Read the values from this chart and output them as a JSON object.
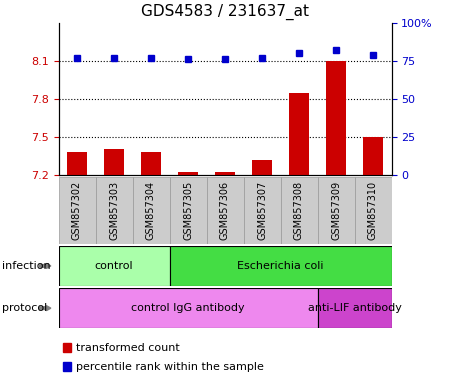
{
  "title": "GDS4583 / 231637_at",
  "samples": [
    "GSM857302",
    "GSM857303",
    "GSM857304",
    "GSM857305",
    "GSM857306",
    "GSM857307",
    "GSM857308",
    "GSM857309",
    "GSM857310"
  ],
  "transformed_count": [
    7.38,
    7.4,
    7.38,
    7.22,
    7.22,
    7.32,
    7.85,
    8.1,
    7.5
  ],
  "percentile_rank": [
    77,
    77,
    77,
    76,
    76,
    77,
    80,
    82,
    79
  ],
  "ylim_left": [
    7.2,
    8.4
  ],
  "ylim_right": [
    0,
    100
  ],
  "yticks_left": [
    7.2,
    7.5,
    7.8,
    8.1
  ],
  "yticks_right": [
    0,
    25,
    50,
    75,
    100
  ],
  "bar_color": "#cc0000",
  "dot_color": "#0000cc",
  "infection_groups": [
    {
      "label": "control",
      "start": 0,
      "end": 3,
      "color": "#aaffaa"
    },
    {
      "label": "Escherichia coli",
      "start": 3,
      "end": 9,
      "color": "#44dd44"
    }
  ],
  "protocol_groups": [
    {
      "label": "control IgG antibody",
      "start": 0,
      "end": 7,
      "color": "#ee88ee"
    },
    {
      "label": "anti-LIF antibody",
      "start": 7,
      "end": 9,
      "color": "#cc44cc"
    }
  ],
  "infection_label": "infection",
  "protocol_label": "protocol",
  "legend_bar_label": "transformed count",
  "legend_dot_label": "percentile rank within the sample",
  "left_axis_color": "#cc0000",
  "right_axis_color": "#0000cc",
  "tick_label_fontsize": 8,
  "title_fontsize": 11,
  "sample_label_fontsize": 7,
  "xtick_bg_color": "#cccccc",
  "xtick_border_color": "#999999"
}
